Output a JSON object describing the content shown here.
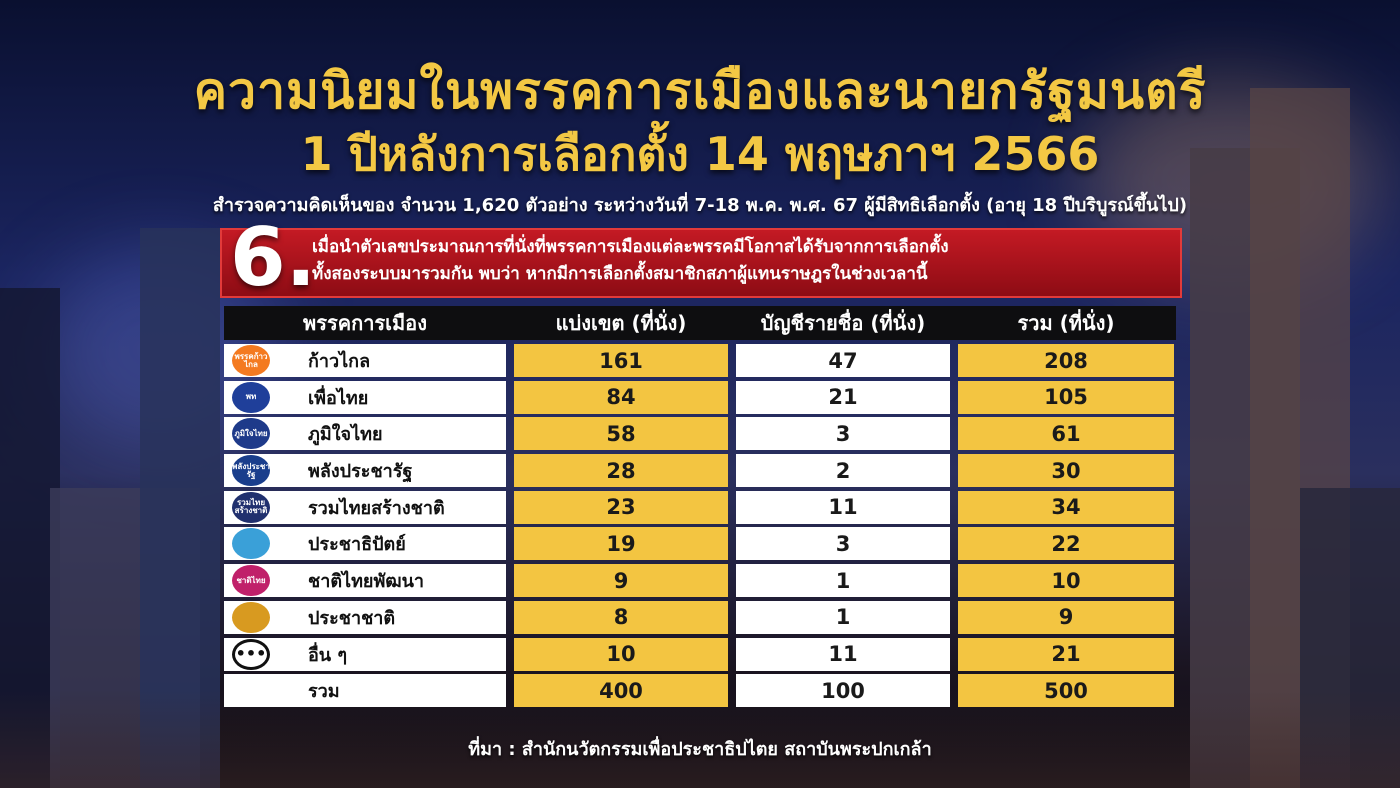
{
  "title": "ความนิยมในพรรคการเมืองและนายกรัฐมนตรี",
  "subtitle": "1 ปีหลังการเลือกตั้ง 14 พฤษภาฯ 2566",
  "survey_note": "สำรวจความคิดเห็นของ จำนวน 1,620 ตัวอย่าง ระหว่างวันที่ 7-18 พ.ค. พ.ศ. 67 ผู้มีสิทธิเลือกตั้ง (อายุ 18 ปีบริบูรณ์ขึ้นไป)",
  "banner": {
    "number": "6.",
    "line1": "เมื่อนำตัวเลขประมาณการที่นั่งที่พรรคการเมืองแต่ละพรรคมีโอกาสได้รับจากการเลือกตั้ง",
    "line2": "ทั้งสองระบบมารวมกัน พบว่า หากมีการเลือกตั้งสมาชิกสภาผู้แทนราษฎรในช่วงเวลานี้"
  },
  "table": {
    "headers": [
      "พรรคการเมือง",
      "แบ่งเขต (ที่นั่ง)",
      "บัญชีรายชื่อ (ที่นั่ง)",
      "รวม (ที่นั่ง)"
    ],
    "rows": [
      {
        "party": "ก้าวไกล",
        "district": "161",
        "list": "47",
        "total": "208",
        "logo_color": "#f47a20",
        "logo_text": "พรรคก้าวไกล"
      },
      {
        "party": "เพื่อไทย",
        "district": "84",
        "list": "21",
        "total": "105",
        "logo_color": "#1f3f9a",
        "logo_text": "พท"
      },
      {
        "party": "ภูมิใจไทย",
        "district": "58",
        "list": "3",
        "total": "61",
        "logo_color": "#1e3a8a",
        "logo_text": "ภูมิใจไทย"
      },
      {
        "party": "พลังประชารัฐ",
        "district": "28",
        "list": "2",
        "total": "30",
        "logo_color": "#1a3e8c",
        "logo_text": "พลังประชารัฐ"
      },
      {
        "party": "รวมไทยสร้างชาติ",
        "district": "23",
        "list": "11",
        "total": "34",
        "logo_color": "#20306e",
        "logo_text": "รวมไทยสร้างชาติ"
      },
      {
        "party": "ประชาธิปัตย์",
        "district": "19",
        "list": "3",
        "total": "22",
        "logo_color": "#3aa0d8",
        "logo_text": ""
      },
      {
        "party": "ชาติไทยพัฒนา",
        "district": "9",
        "list": "1",
        "total": "10",
        "logo_color": "#c0206a",
        "logo_text": "ชาติไทย"
      },
      {
        "party": "ประชาชาติ",
        "district": "8",
        "list": "1",
        "total": "9",
        "logo_color": "#d89a20",
        "logo_text": ""
      },
      {
        "party": "อื่น ๆ",
        "district": "10",
        "list": "11",
        "total": "21",
        "logo_color": "#ffffff",
        "logo_text": "•••"
      }
    ],
    "total_row": {
      "party": "รวม",
      "district": "400",
      "list": "100",
      "total": "500"
    }
  },
  "source": "ที่มา : สำนักนวัตกรรมเพื่อประชาธิปไตย สถาบันพระปกเกล้า",
  "colors": {
    "title": "#f3c844",
    "cell_yellow": "#f3c541",
    "banner_red": "#c41a24",
    "header_black": "#0e0e10"
  }
}
